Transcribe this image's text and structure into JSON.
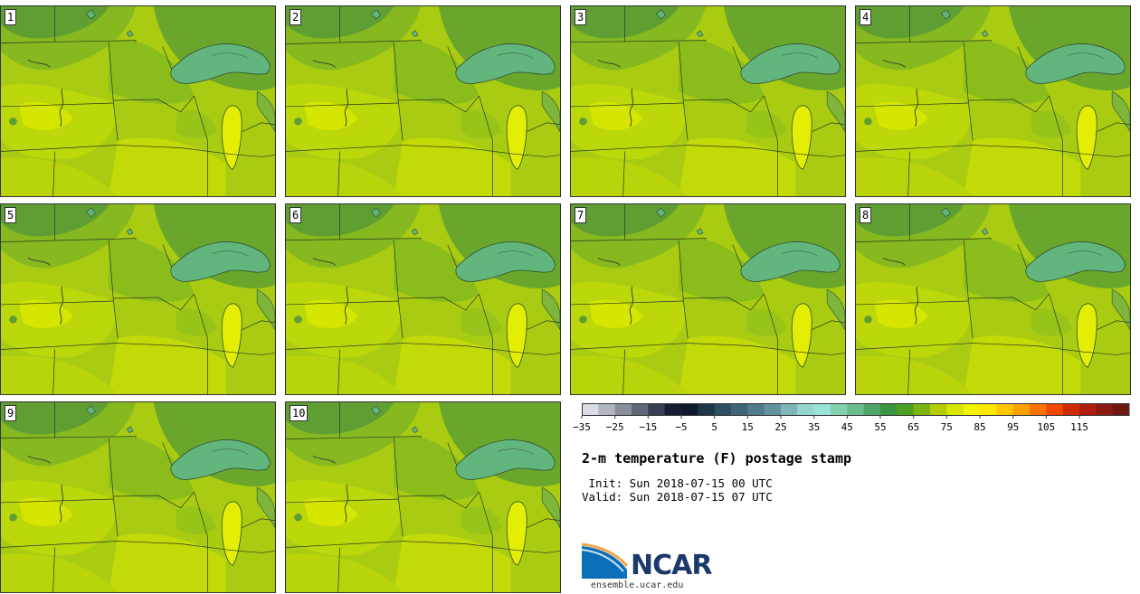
{
  "panels": [
    {
      "label": "1"
    },
    {
      "label": "2"
    },
    {
      "label": "3"
    },
    {
      "label": "4"
    },
    {
      "label": "5"
    },
    {
      "label": "6"
    },
    {
      "label": "7"
    },
    {
      "label": "8"
    },
    {
      "label": "9"
    },
    {
      "label": "10"
    }
  ],
  "colorbar": {
    "colors": [
      "#d9dde3",
      "#b1b6bf",
      "#8a8f9c",
      "#616779",
      "#3a3f55",
      "#151c33",
      "#0d1a2c",
      "#1f3649",
      "#2f4f62",
      "#3e6577",
      "#4f7b8c",
      "#63929f",
      "#7fb5b6",
      "#95d7cf",
      "#9be3d4",
      "#83d1ad",
      "#69bf8e",
      "#4fa66b",
      "#3b9540",
      "#4f9f22",
      "#7cb40f",
      "#b3cd00",
      "#d8e500",
      "#f2f200",
      "#ffe800",
      "#ffc600",
      "#ffa200",
      "#ff7200",
      "#f04800",
      "#d02a05",
      "#b01c10",
      "#8a1a12",
      "#6e1a10"
    ],
    "tick_labels": [
      "−35",
      "−25",
      "−15",
      "−5",
      "5",
      "15",
      "25",
      "35",
      "45",
      "55",
      "65",
      "75",
      "85",
      "95",
      "105",
      "115"
    ]
  },
  "title": "2-m temperature (F) postage stamp",
  "init_line": " Init: Sun 2018-07-15 00 UTC",
  "valid_line": "Valid: Sun 2018-07-15 07 UTC",
  "logo": {
    "name": "NCAR",
    "url": "ensemble.ucar.edu"
  }
}
